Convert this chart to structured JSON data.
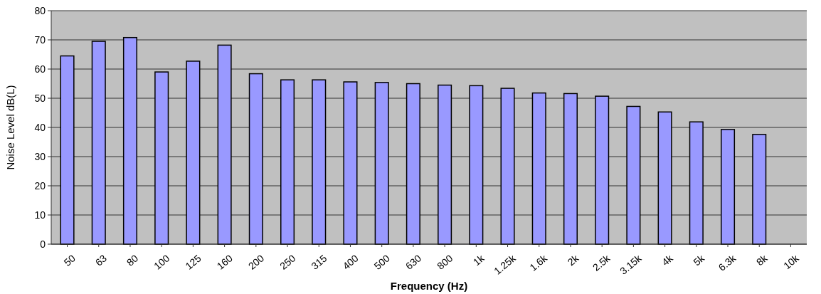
{
  "chart_data": {
    "type": "bar",
    "xlabel": "Frequency (Hz)",
    "ylabel": "Noise Level dB(L)",
    "categories": [
      "50",
      "63",
      "80",
      "100",
      "125",
      "160",
      "200",
      "250",
      "315",
      "400",
      "500",
      "630",
      "800",
      "1k",
      "1.25k",
      "1.6k",
      "2k",
      "2.5k",
      "3.15k",
      "4k",
      "5k",
      "6.3k",
      "8k",
      "10k"
    ],
    "values": [
      64.5,
      69.5,
      70.8,
      59,
      62.7,
      68.2,
      58.4,
      56.3,
      56.3,
      55.6,
      55.4,
      55,
      54.5,
      54.3,
      53.4,
      51.8,
      51.6,
      50.7,
      47.2,
      45.3,
      41.9,
      39.3,
      37.6,
      null
    ],
    "color": "#9999ff",
    "ylim": [
      0,
      80
    ],
    "yticks": [
      0,
      10,
      20,
      30,
      40,
      50,
      60,
      70,
      80
    ],
    "grid": "y"
  }
}
